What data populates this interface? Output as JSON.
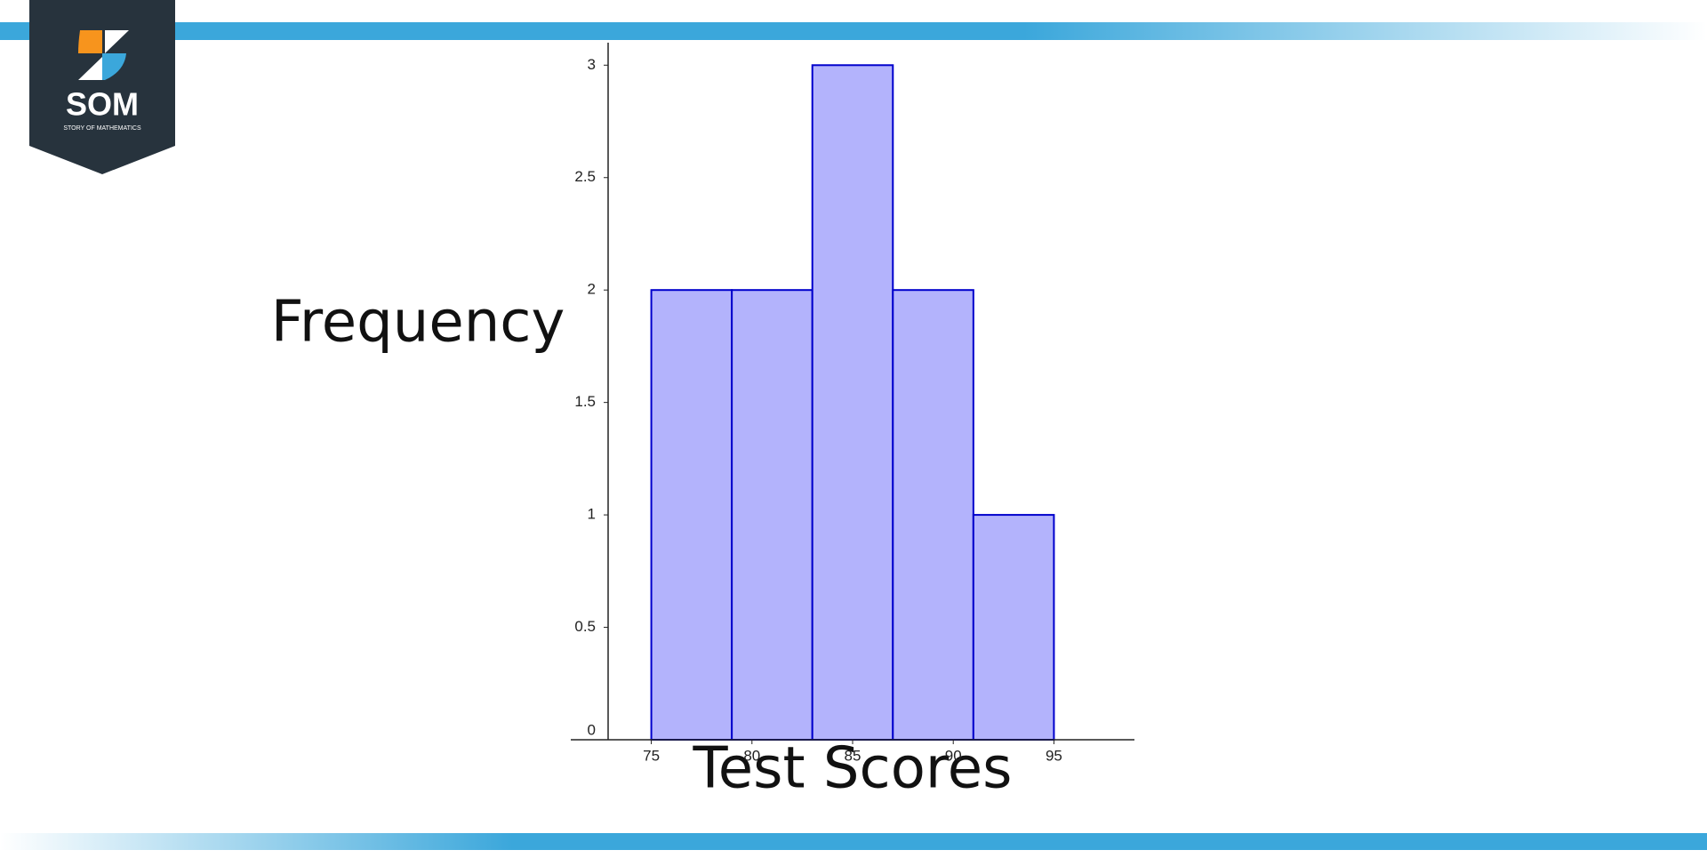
{
  "logo": {
    "name": "SOM",
    "tagline": "STORY OF MATHEMATICS"
  },
  "chart_data": {
    "type": "histogram",
    "x_label": "Test Scores",
    "y_label": "Frequency",
    "bins": [
      75,
      79,
      83,
      87,
      91,
      95
    ],
    "counts": [
      2,
      2,
      3,
      2,
      1
    ],
    "color": "#b3b3fc",
    "edge_color": "#0000cc",
    "xlim": [
      71,
      99
    ],
    "xticks": [
      75,
      80,
      85,
      90,
      95
    ],
    "ylim": [
      0,
      3.1
    ],
    "yticks": [
      0,
      0.5,
      1,
      1.5,
      2,
      2.5,
      3
    ],
    "grid": false
  }
}
